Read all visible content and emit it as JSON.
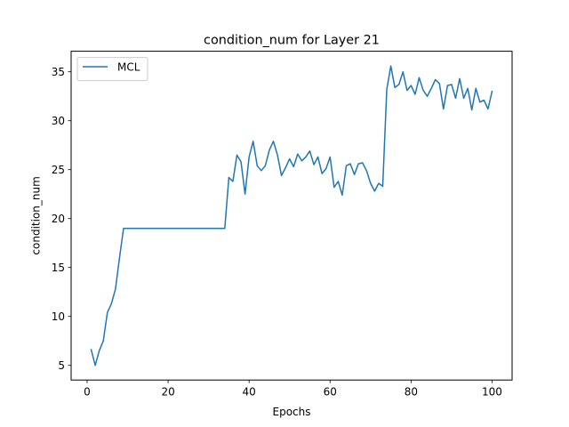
{
  "chart_data": {
    "type": "line",
    "title": "condition_num for Layer 21",
    "xlabel": "Epochs",
    "ylabel": "condition_num",
    "xlim": [
      -3.95,
      104.95
    ],
    "ylim": [
      3.5,
      37.1
    ],
    "xticks": [
      0,
      20,
      40,
      60,
      80,
      100
    ],
    "yticks": [
      5,
      10,
      15,
      20,
      25,
      30,
      35
    ],
    "grid": false,
    "legend": "top-left",
    "series": [
      {
        "name": "MCL",
        "color": "#1f77b4",
        "x": [
          1,
          2,
          3,
          4,
          5,
          6,
          7,
          8,
          9,
          10,
          11,
          12,
          13,
          14,
          15,
          16,
          17,
          18,
          19,
          20,
          21,
          22,
          23,
          24,
          25,
          26,
          27,
          28,
          29,
          30,
          31,
          32,
          33,
          34,
          35,
          36,
          37,
          38,
          39,
          40,
          41,
          42,
          43,
          44,
          45,
          46,
          47,
          48,
          49,
          50,
          51,
          52,
          53,
          54,
          55,
          56,
          57,
          58,
          59,
          60,
          61,
          62,
          63,
          64,
          65,
          66,
          67,
          68,
          69,
          70,
          71,
          72,
          73,
          74,
          75,
          76,
          77,
          78,
          79,
          80,
          81,
          82,
          83,
          84,
          85,
          86,
          87,
          88,
          89,
          90,
          91,
          92,
          93,
          94,
          95,
          96,
          97,
          98,
          99,
          100
        ],
        "y": [
          6.6,
          5.0,
          6.5,
          7.5,
          10.4,
          11.3,
          12.8,
          16.0,
          19.0,
          19.0,
          19.0,
          19.0,
          19.0,
          19.0,
          19.0,
          19.0,
          19.0,
          19.0,
          19.0,
          19.0,
          19.0,
          19.0,
          19.0,
          19.0,
          19.0,
          19.0,
          19.0,
          19.0,
          19.0,
          19.0,
          19.0,
          19.0,
          19.0,
          19.0,
          24.2,
          23.8,
          26.5,
          25.8,
          22.5,
          26.3,
          27.9,
          25.4,
          24.9,
          25.4,
          27.0,
          27.9,
          26.5,
          24.4,
          25.2,
          26.1,
          25.3,
          26.6,
          25.9,
          26.3,
          26.9,
          25.5,
          26.3,
          24.6,
          25.1,
          26.3,
          23.2,
          23.8,
          22.4,
          25.4,
          25.6,
          24.5,
          25.6,
          25.7,
          24.9,
          23.6,
          22.8,
          23.6,
          23.3,
          33.2,
          35.6,
          33.4,
          33.7,
          35.0,
          33.1,
          33.6,
          32.7,
          34.4,
          33.1,
          32.5,
          33.3,
          34.2,
          33.8,
          31.2,
          33.6,
          33.7,
          32.3,
          34.3,
          32.3,
          33.3,
          31.1,
          33.3,
          31.9,
          32.1,
          31.2,
          33.0
        ]
      }
    ]
  }
}
